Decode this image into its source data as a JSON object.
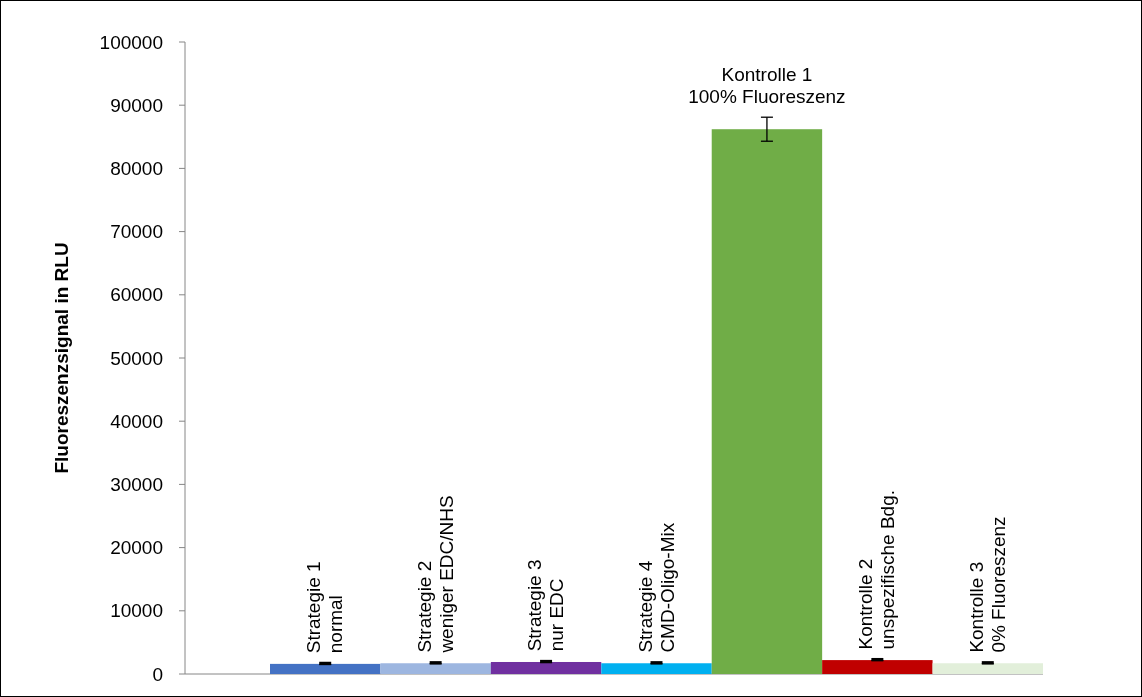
{
  "chart_data": {
    "type": "bar",
    "ylabel": "Fluoreszenzsignal in RLU",
    "categories": [
      "Strategie 1\nnormal",
      "Strategie 2\nweniger EDC/NHS",
      "Strategie 3\nnur EDC",
      "Strategie 4\nCMD-Oligo-Mix",
      "Kontrolle 1\n100% Fluoreszenz",
      "Kontrolle 2\nunspezifische Bdg.",
      "Kontrolle 3\n0% Fluoreszenz"
    ],
    "values": [
      1600,
      1700,
      1900,
      1700,
      86200,
      2200,
      1700
    ],
    "colors": [
      "#4472c4",
      "#9db6e0",
      "#7030a0",
      "#00b0f0",
      "#70ad47",
      "#c00000",
      "#e2efda"
    ],
    "errors": [
      100,
      100,
      100,
      100,
      1900,
      100,
      100
    ],
    "ylim": [
      0,
      100000
    ],
    "yticks": [
      0,
      10000,
      20000,
      30000,
      40000,
      50000,
      60000,
      70000,
      80000,
      90000,
      100000
    ],
    "grid": false
  }
}
